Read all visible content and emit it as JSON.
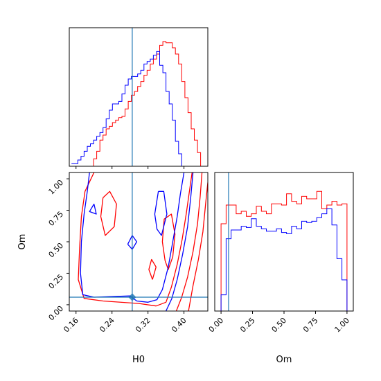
{
  "chart_data": [
    {
      "type": "histogram",
      "panel": "H0 marginal",
      "xlabel": "",
      "ylabel": "",
      "xlim": [
        0.145,
        0.453
      ],
      "truth_line": 0.285,
      "truth_color": "#1f77b4",
      "series": [
        {
          "color": "#ff0000",
          "step_x": [
            0.15,
            0.157,
            0.164,
            0.171,
            0.178,
            0.185,
            0.192,
            0.199,
            0.206,
            0.213,
            0.22,
            0.227,
            0.234,
            0.241,
            0.248,
            0.255,
            0.262,
            0.269,
            0.276,
            0.283,
            0.29,
            0.297,
            0.304,
            0.311,
            0.318,
            0.325,
            0.332,
            0.339,
            0.346,
            0.353,
            0.36,
            0.367,
            0.374,
            0.381,
            0.388,
            0.395,
            0.402,
            0.409,
            0.416,
            0.423,
            0.43,
            0.437,
            0.444,
            0.451
          ],
          "density": [
            0,
            0,
            0,
            0,
            0,
            0,
            0,
            0.06,
            0.12,
            0.21,
            0.25,
            0.3,
            0.32,
            0.35,
            0.37,
            0.39,
            0.4,
            0.46,
            0.52,
            0.57,
            0.6,
            0.64,
            0.68,
            0.73,
            0.77,
            0.82,
            0.86,
            0.9,
            0.97,
            1.0,
            0.99,
            0.99,
            0.95,
            0.9,
            0.82,
            0.68,
            0.55,
            0.43,
            0.3,
            0.21,
            0.11,
            0.0,
            0
          ]
        },
        {
          "color": "#0000ff",
          "step_x": [
            0.15,
            0.157,
            0.164,
            0.171,
            0.178,
            0.185,
            0.192,
            0.199,
            0.206,
            0.213,
            0.22,
            0.227,
            0.234,
            0.241,
            0.248,
            0.255,
            0.262,
            0.269,
            0.276,
            0.283,
            0.29,
            0.297,
            0.304,
            0.311,
            0.318,
            0.325,
            0.332,
            0.339,
            0.346,
            0.353,
            0.36,
            0.367,
            0.374,
            0.381,
            0.388,
            0.395,
            0.402,
            0.409,
            0.416,
            0.423,
            0.43,
            0.437,
            0.444,
            0.451
          ],
          "density": [
            0.02,
            0.02,
            0.05,
            0.08,
            0.12,
            0.16,
            0.18,
            0.21,
            0.24,
            0.27,
            0.31,
            0.38,
            0.45,
            0.5,
            0.5,
            0.52,
            0.58,
            0.65,
            0.7,
            0.72,
            0.72,
            0.74,
            0.77,
            0.82,
            0.84,
            0.86,
            0.89,
            0.92,
            0.81,
            0.75,
            0.6,
            0.5,
            0.37,
            0.2,
            0.1,
            0.0,
            0.0,
            0,
            0,
            0,
            0,
            0,
            0
          ]
        }
      ]
    },
    {
      "type": "contour",
      "panel": "H0 vs Om joint",
      "xlabel": "H0",
      "ylabel": "Om",
      "xlim": [
        0.145,
        0.453
      ],
      "ylim": [
        -0.05,
        1.05
      ],
      "xticks": [
        0.16,
        0.24,
        0.32,
        0.4
      ],
      "xtick_labels": [
        "0.16",
        "0.24",
        "0.32",
        "0.40"
      ],
      "yticks": [
        0.0,
        0.25,
        0.5,
        0.75,
        1.0
      ],
      "ytick_labels": [
        "0.00",
        "0.25",
        "0.50",
        "0.75",
        "1.00"
      ],
      "truth_lines": {
        "x": 0.285,
        "y": 0.06
      },
      "truth_color": "#1f77b4",
      "series": [
        {
          "color": "#ff0000",
          "contours": [
            [
              [
                0.418,
                1.05
              ],
              [
                0.412,
                0.9
              ],
              [
                0.405,
                0.72
              ],
              [
                0.396,
                0.52
              ],
              [
                0.385,
                0.32
              ],
              [
                0.372,
                0.14
              ],
              [
                0.36,
                0.02
              ],
              [
                0.338,
                -0.01
              ],
              [
                0.3,
                0.01
              ],
              [
                0.22,
                0.03
              ],
              [
                0.178,
                0.05
              ],
              [
                0.165,
                0.2
              ],
              [
                0.168,
                0.45
              ],
              [
                0.172,
                0.7
              ],
              [
                0.18,
                0.9
              ],
              [
                0.2,
                1.05
              ]
            ],
            [
              [
                0.44,
                1.05
              ],
              [
                0.436,
                0.86
              ],
              [
                0.43,
                0.64
              ],
              [
                0.42,
                0.42
              ],
              [
                0.408,
                0.22
              ],
              [
                0.395,
                0.06
              ],
              [
                0.383,
                -0.05
              ]
            ],
            [
              [
                0.453,
                0.97
              ],
              [
                0.448,
                0.8
              ],
              [
                0.442,
                0.58
              ],
              [
                0.432,
                0.36
              ],
              [
                0.42,
                0.15
              ],
              [
                0.41,
                -0.05
              ]
            ],
            [
              [
                0.358,
                0.35
              ],
              [
                0.352,
                0.5
              ],
              [
                0.356,
                0.68
              ],
              [
                0.372,
                0.72
              ],
              [
                0.38,
                0.56
              ],
              [
                0.375,
                0.38
              ],
              [
                0.365,
                0.28
              ],
              [
                0.358,
                0.35
              ]
            ],
            [
              [
                0.22,
                0.85
              ],
              [
                0.215,
                0.7
              ],
              [
                0.225,
                0.55
              ],
              [
                0.245,
                0.62
              ],
              [
                0.25,
                0.8
              ],
              [
                0.235,
                0.9
              ],
              [
                0.22,
                0.85
              ]
            ],
            [
              [
                0.33,
                0.2
              ],
              [
                0.322,
                0.28
              ],
              [
                0.328,
                0.36
              ],
              [
                0.338,
                0.3
              ],
              [
                0.33,
                0.2
              ]
            ]
          ]
        },
        {
          "color": "#0000ff",
          "contours": [
            [
              [
                0.4,
                1.05
              ],
              [
                0.392,
                0.88
              ],
              [
                0.385,
                0.7
              ],
              [
                0.375,
                0.5
              ],
              [
                0.365,
                0.3
              ],
              [
                0.352,
                0.12
              ],
              [
                0.34,
                0.04
              ],
              [
                0.32,
                0.02
              ],
              [
                0.295,
                0.03
              ],
              [
                0.28,
                0.07
              ],
              [
                0.2,
                0.06
              ],
              [
                0.175,
                0.08
              ],
              [
                0.17,
                0.25
              ],
              [
                0.172,
                0.5
              ],
              [
                0.178,
                0.72
              ],
              [
                0.185,
                0.9
              ],
              [
                0.19,
                1.05
              ]
            ],
            [
              [
                0.42,
                1.05
              ],
              [
                0.415,
                0.85
              ],
              [
                0.408,
                0.62
              ],
              [
                0.397,
                0.4
              ],
              [
                0.385,
                0.2
              ],
              [
                0.373,
                0.05
              ],
              [
                0.36,
                -0.05
              ]
            ],
            [
              [
                0.343,
                0.9
              ],
              [
                0.335,
                0.72
              ],
              [
                0.34,
                0.6
              ],
              [
                0.35,
                0.55
              ],
              [
                0.362,
                0.72
              ],
              [
                0.355,
                0.9
              ],
              [
                0.343,
                0.9
              ]
            ],
            [
              [
                0.275,
                0.48
              ],
              [
                0.285,
                0.44
              ],
              [
                0.295,
                0.5
              ],
              [
                0.285,
                0.55
              ],
              [
                0.275,
                0.48
              ]
            ],
            [
              [
                0.2,
                0.8
              ],
              [
                0.19,
                0.74
              ],
              [
                0.205,
                0.72
              ],
              [
                0.2,
                0.8
              ]
            ]
          ]
        }
      ]
    },
    {
      "type": "histogram",
      "panel": "Om marginal",
      "xlabel": "Om",
      "ylabel": "",
      "xlim": [
        -0.05,
        1.05
      ],
      "xticks": [
        0.0,
        0.25,
        0.5,
        0.75,
        1.0
      ],
      "xtick_labels": [
        "0.00",
        "0.25",
        "0.50",
        "0.75",
        "1.00"
      ],
      "truth_line": 0.06,
      "truth_color": "#1f77b4",
      "series": [
        {
          "color": "#ff0000",
          "step_x": [
            0.0,
            0.04,
            0.08,
            0.12,
            0.16,
            0.2,
            0.24,
            0.28,
            0.32,
            0.36,
            0.4,
            0.44,
            0.48,
            0.52,
            0.56,
            0.6,
            0.64,
            0.68,
            0.72,
            0.76,
            0.8,
            0.84,
            0.88,
            0.92,
            0.96,
            1.0
          ],
          "density": [
            0.7,
            0.85,
            0.85,
            0.78,
            0.8,
            0.76,
            0.78,
            0.84,
            0.8,
            0.78,
            0.86,
            0.86,
            0.85,
            0.94,
            0.88,
            0.86,
            0.92,
            0.9,
            0.9,
            0.96,
            0.82,
            0.85,
            0.88,
            0.85,
            0.86,
            0.0
          ]
        },
        {
          "color": "#0000ff",
          "step_x": [
            0.0,
            0.04,
            0.08,
            0.12,
            0.16,
            0.2,
            0.24,
            0.28,
            0.32,
            0.36,
            0.4,
            0.44,
            0.48,
            0.52,
            0.56,
            0.6,
            0.64,
            0.68,
            0.72,
            0.76,
            0.8,
            0.84,
            0.88,
            0.92,
            0.96,
            1.0
          ],
          "density": [
            0.13,
            0.58,
            0.65,
            0.65,
            0.68,
            0.67,
            0.74,
            0.68,
            0.66,
            0.64,
            0.64,
            0.66,
            0.63,
            0.62,
            0.68,
            0.66,
            0.72,
            0.71,
            0.72,
            0.75,
            0.78,
            0.82,
            0.69,
            0.42,
            0.25,
            0.0
          ]
        }
      ]
    }
  ]
}
